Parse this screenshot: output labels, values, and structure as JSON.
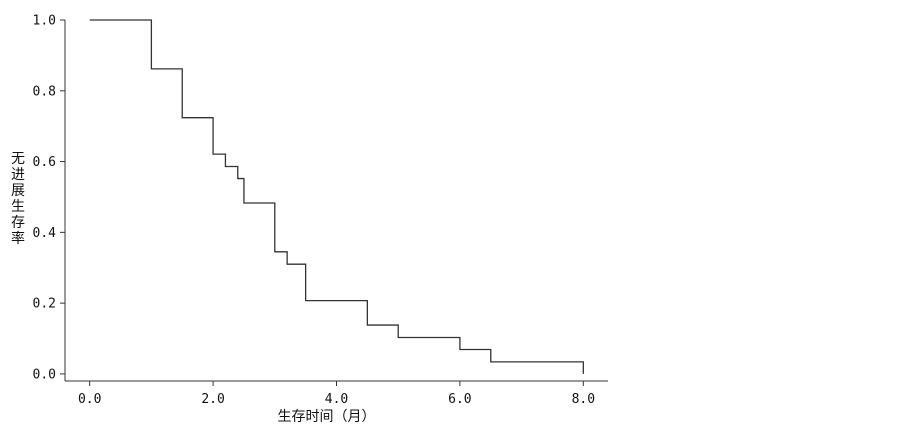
{
  "chart_data": {
    "type": "line",
    "step": "post",
    "title": "",
    "xlabel": "生存时间（月）",
    "ylabel": "无进展生存率",
    "xlim": [
      -0.4,
      8.4
    ],
    "ylim": [
      -0.02,
      1.0
    ],
    "xticks": [
      0,
      2,
      4,
      6,
      8
    ],
    "xtick_labels": [
      "0.0",
      "2.0",
      "4.0",
      "6.0",
      "8.0"
    ],
    "yticks": [
      0,
      0.2,
      0.4,
      0.6,
      0.8,
      1.0
    ],
    "ytick_labels": [
      "0.0",
      "0.2",
      "0.4",
      "0.6",
      "0.8",
      "1.0"
    ],
    "grid": false,
    "legend": "none",
    "series": [
      {
        "x": [
          0.0,
          1.0,
          1.5,
          2.0,
          2.2,
          2.4,
          2.5,
          3.0,
          3.2,
          3.5,
          4.5,
          5.0,
          6.0,
          6.5,
          8.0
        ],
        "y": [
          1.0,
          0.862,
          0.724,
          0.621,
          0.586,
          0.552,
          0.483,
          0.345,
          0.31,
          0.207,
          0.138,
          0.103,
          0.069,
          0.034,
          0.0
        ]
      }
    ],
    "color": "#333333"
  }
}
